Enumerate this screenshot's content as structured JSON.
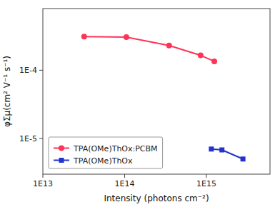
{
  "chart_data": {
    "type": "line",
    "xlabel": "Intensity (photons cm⁻²)",
    "ylabel": "φΣμ(cm² V⁻¹ s⁻¹)",
    "log": true,
    "grid": false,
    "legend": "lower left",
    "xlim": [
      10000000000000.0,
      6000000000000000.0
    ],
    "ylim": [
      3e-06,
      0.0008
    ],
    "xticks": [
      {
        "value": 10000000000000.0,
        "label": "1E13"
      },
      {
        "value": 100000000000000.0,
        "label": "1E14"
      },
      {
        "value": 1000000000000000.0,
        "label": "1E15"
      }
    ],
    "yticks": [
      {
        "value": 1e-05,
        "label": "1E-5"
      },
      {
        "value": 0.0001,
        "label": "1E-4"
      }
    ],
    "series": [
      {
        "name": "TPA(OMe)ThOx:PCBM",
        "color": "#FF3355",
        "marker": "circle",
        "line_style": "solid",
        "x": [
          32000000000000.0,
          105000000000000.0,
          350000000000000.0,
          850000000000000.0,
          1250000000000000.0
        ],
        "values": [
          0.00031,
          0.000305,
          0.00023,
          0.000165,
          0.000135
        ]
      },
      {
        "name": "TPA(OMe)ThOx",
        "color": "#2233CC",
        "marker": "square",
        "line_style": "solid",
        "x": [
          1150000000000000.0,
          1550000000000000.0,
          2800000000000000.0
        ],
        "values": [
          7e-06,
          6.8e-06,
          5e-06
        ]
      }
    ]
  }
}
